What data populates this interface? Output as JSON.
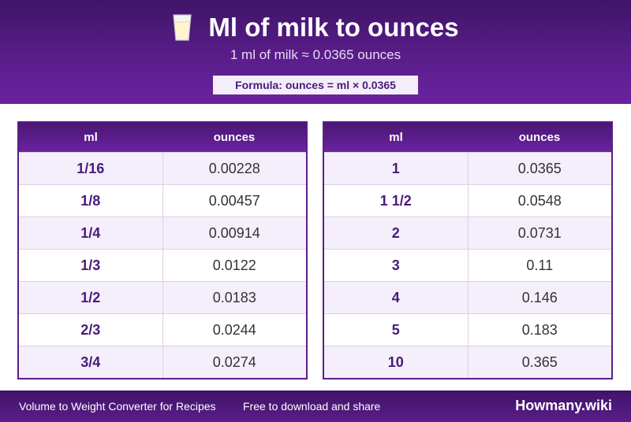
{
  "header": {
    "title": "Ml of milk to ounces",
    "subtitle": "1 ml of milk ≈ 0.0365 ounces",
    "formula": "Formula: ounces = ml × 0.0365",
    "icon": "milk-glass-icon"
  },
  "tables": [
    {
      "col1": "ml",
      "col2": "ounces",
      "rows": [
        [
          "1/16",
          "0.00228"
        ],
        [
          "1/8",
          "0.00457"
        ],
        [
          "1/4",
          "0.00914"
        ],
        [
          "1/3",
          "0.0122"
        ],
        [
          "1/2",
          "0.0183"
        ],
        [
          "2/3",
          "0.0244"
        ],
        [
          "3/4",
          "0.0274"
        ]
      ]
    },
    {
      "col1": "ml",
      "col2": "ounces",
      "rows": [
        [
          "1",
          "0.0365"
        ],
        [
          "1 1/2",
          "0.0548"
        ],
        [
          "2",
          "0.0731"
        ],
        [
          "3",
          "0.11"
        ],
        [
          "4",
          "0.146"
        ],
        [
          "5",
          "0.183"
        ],
        [
          "10",
          "0.365"
        ]
      ]
    }
  ],
  "footer": {
    "left_text": "Volume to Weight Converter for Recipes",
    "middle_text": "Free to download and share",
    "brand": "Howmany.wiki"
  },
  "colors": {
    "brand_purple": "#5a1d8a",
    "header_dark": "#3f1466",
    "cell_text_purple": "#4a1a7a"
  }
}
